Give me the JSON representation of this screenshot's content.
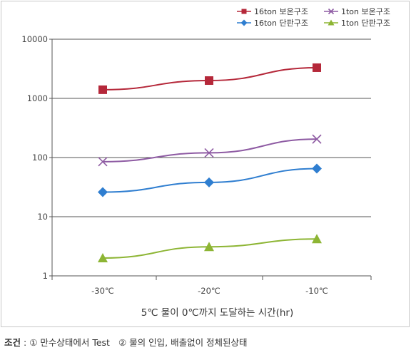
{
  "chart_data": {
    "type": "line",
    "y_scale": "log",
    "ylim": [
      1,
      10000
    ],
    "y_ticks": [
      "10000",
      "1000",
      "100",
      "10",
      "1"
    ],
    "categories": [
      "-30℃",
      "-20℃",
      "-10℃"
    ],
    "xlabel": "5℃ 물이 0℃까지 도달하는 시간(hr)",
    "ylabel": "",
    "grid": "horizontal",
    "legend_position": "top-right",
    "series": [
      {
        "name": "16ton 보온구조",
        "values": [
          1400,
          2000,
          3300
        ],
        "color": "#b5283a",
        "marker": "square"
      },
      {
        "name": "1ton 보온구조",
        "values": [
          85,
          120,
          205
        ],
        "color": "#8e5ba3",
        "marker": "x"
      },
      {
        "name": "16ton 단판구조",
        "values": [
          26,
          38,
          65
        ],
        "color": "#2f7ed0",
        "marker": "diamond"
      },
      {
        "name": "1ton 단판구조",
        "values": [
          2,
          3.1,
          4.2
        ],
        "color": "#8db534",
        "marker": "triangle"
      }
    ]
  },
  "footnote": {
    "label": "조건",
    "sep": " : ",
    "item1": "① 만수상태에서 Test",
    "item2": "② 물의 인입, 배출없이 정체된상태"
  }
}
